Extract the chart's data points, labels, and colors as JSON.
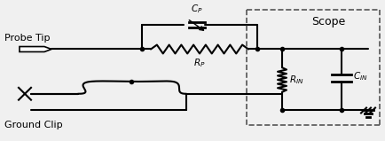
{
  "bg_color": "#f0f0f0",
  "line_color": "#000000",
  "dashed_color": "#555555",
  "text_color": "#000000",
  "fig_width": 4.35,
  "fig_height": 1.59,
  "dpi": 100,
  "probe_tip_label": "Probe Tip",
  "ground_clip_label": "Ground Clip",
  "scope_label": "Scope",
  "cp_label": "C_P",
  "rp_label": "R_P",
  "rin_label": "R_IN",
  "cin_label": "C_IN"
}
